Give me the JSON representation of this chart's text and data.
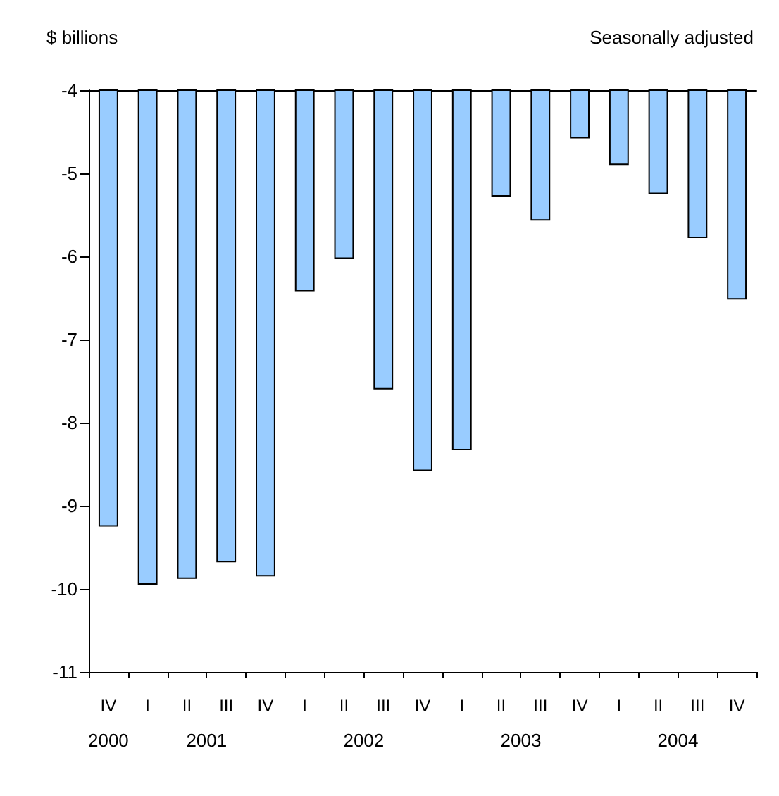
{
  "chart_data": {
    "type": "bar",
    "subtitle": "Seasonally adjusted",
    "ylabel": "$ billions",
    "categories": [
      "IV",
      "I",
      "II",
      "III",
      "IV",
      "I",
      "II",
      "III",
      "IV",
      "I",
      "II",
      "III",
      "IV",
      "I",
      "II",
      "III",
      "IV"
    ],
    "values": [
      -9.25,
      -9.95,
      -9.88,
      -9.68,
      -9.85,
      -6.42,
      -6.03,
      -7.6,
      -8.58,
      -8.33,
      -5.28,
      -5.57,
      -4.58,
      -4.9,
      -5.25,
      -5.78,
      -6.52
    ],
    "color": "#99ccff",
    "ylim": [
      -11,
      -4
    ],
    "yticks": [
      -11,
      -10,
      -9,
      -8,
      -7,
      -6,
      -5,
      -4
    ],
    "grid": false,
    "annotations": [
      "2000",
      "2001",
      "2002",
      "2003",
      "2004"
    ]
  }
}
